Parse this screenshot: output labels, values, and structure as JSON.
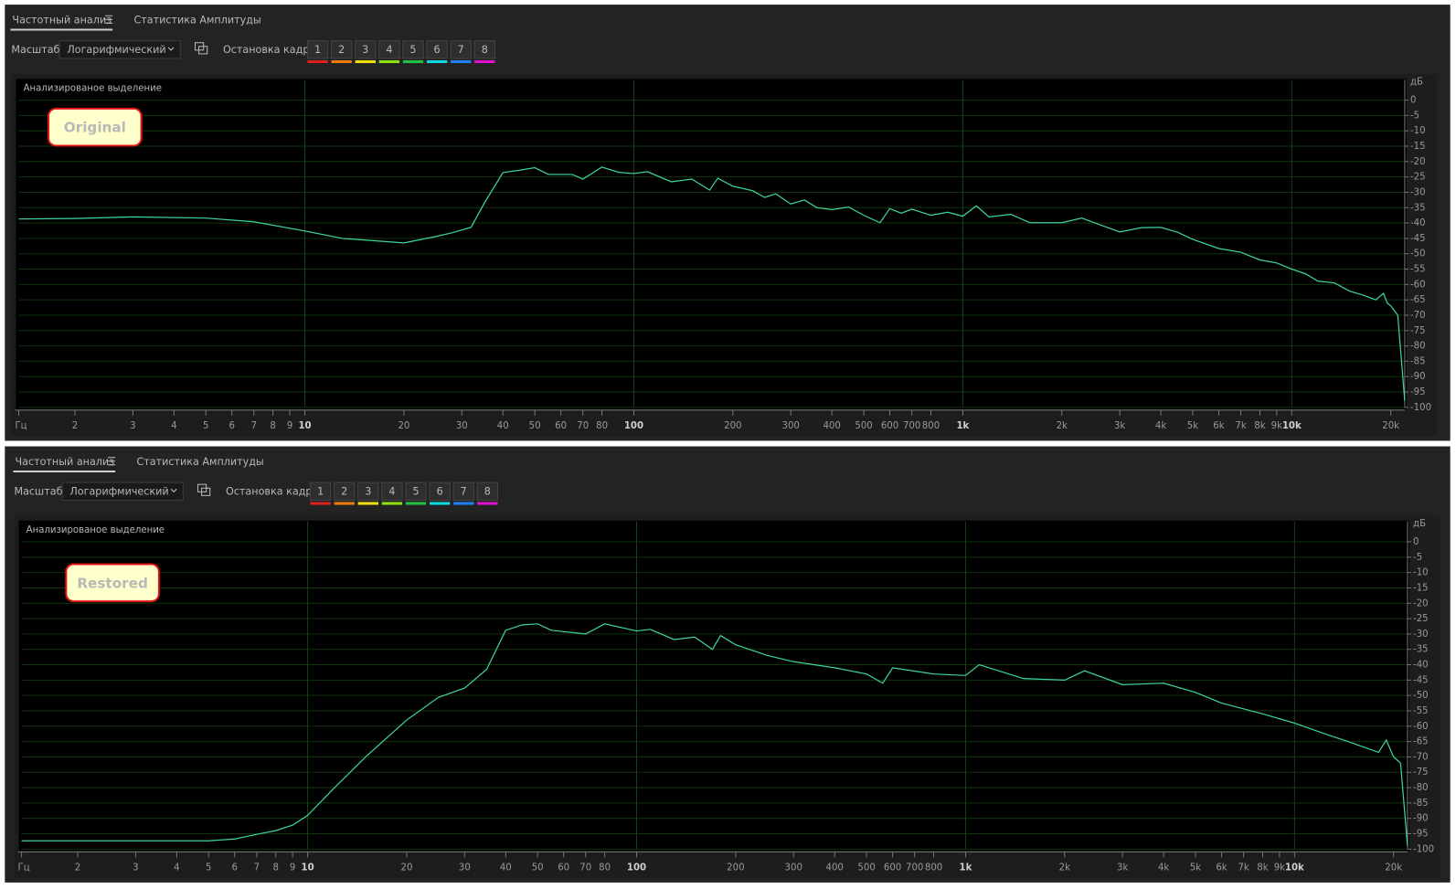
{
  "panels": [
    {
      "tabs": [
        "Частотный анализ",
        "Статистика Амплитуды"
      ],
      "scale_label": "Масштаб:",
      "scale_value": "Логарифмический",
      "freeze_label": "Остановка кадра:",
      "freeze_buttons": [
        {
          "label": "1",
          "color": "#e01e1e"
        },
        {
          "label": "2",
          "color": "#f07c10"
        },
        {
          "label": "3",
          "color": "#f0e010"
        },
        {
          "label": "4",
          "color": "#8fe010"
        },
        {
          "label": "5",
          "color": "#20c040"
        },
        {
          "label": "6",
          "color": "#10d8e0"
        },
        {
          "label": "7",
          "color": "#2080f0"
        },
        {
          "label": "8",
          "color": "#e010d0"
        }
      ]
    },
    {
      "tabs": [
        "Частотный анализ",
        "Статистика Амплитуды"
      ],
      "scale_label": "Масштаб:",
      "scale_value": "Логарифмический",
      "freeze_label": "Остановка кадра:",
      "freeze_buttons": [
        {
          "label": "1",
          "color": "#e01e1e"
        },
        {
          "label": "2",
          "color": "#f07c10"
        },
        {
          "label": "3",
          "color": "#f0e010"
        },
        {
          "label": "4",
          "color": "#8fe010"
        },
        {
          "label": "5",
          "color": "#20c040"
        },
        {
          "label": "6",
          "color": "#10d8e0"
        },
        {
          "label": "7",
          "color": "#2080f0"
        },
        {
          "label": "8",
          "color": "#e010d0"
        }
      ]
    }
  ],
  "chart_data": [
    {
      "type": "line",
      "overlay_label": "Анализированое выделение",
      "annotation": "Original",
      "x_unit": "Гц",
      "y_unit": "дБ",
      "log_x": true,
      "grid": true,
      "color": "#3fd69b",
      "x": [
        1.35,
        2,
        3,
        5,
        7,
        10,
        13,
        20,
        25,
        28,
        32,
        35,
        40,
        45,
        50,
        55,
        65,
        70,
        80,
        90,
        100,
        110,
        130,
        150,
        170,
        180,
        200,
        230,
        250,
        270,
        300,
        330,
        360,
        400,
        450,
        500,
        560,
        600,
        650,
        700,
        800,
        900,
        1000,
        1100,
        1200,
        1400,
        1600,
        2000,
        2300,
        2600,
        3000,
        3500,
        4000,
        4500,
        5000,
        6000,
        7000,
        8000,
        9000,
        10000,
        11000,
        12000,
        13500,
        15000,
        16500,
        18000,
        19000,
        19500,
        20000,
        21000,
        22050
      ],
      "values": [
        -38.7,
        -38.5,
        -38,
        -38.4,
        -39.6,
        -42.6,
        -45,
        -46.5,
        -44.4,
        -43.2,
        -41.4,
        -33.8,
        -23.6,
        -22.8,
        -22,
        -24.2,
        -24.2,
        -25.7,
        -21.8,
        -23.5,
        -23.9,
        -23.3,
        -26.6,
        -25.7,
        -29.3,
        -25.4,
        -28,
        -29.5,
        -31.7,
        -30.5,
        -33.8,
        -32.5,
        -35,
        -35.6,
        -34.8,
        -37.5,
        -39.9,
        -35.3,
        -36.8,
        -35.5,
        -37.5,
        -36.5,
        -37.8,
        -34.4,
        -38,
        -37.2,
        -39.9,
        -39.9,
        -38.4,
        -40.5,
        -42.9,
        -41.5,
        -41.4,
        -43,
        -45.3,
        -48.3,
        -49.5,
        -52,
        -53,
        -55,
        -56.5,
        -58.9,
        -59.5,
        -62.2,
        -63.5,
        -65,
        -62.9,
        -66,
        -67,
        -70,
        -97.9
      ],
      "xlim": [
        1.35,
        22050
      ],
      "ylim": [
        -100,
        6
      ],
      "xticks": [
        2,
        3,
        4,
        5,
        6,
        7,
        8,
        9,
        10,
        20,
        30,
        40,
        50,
        60,
        70,
        80,
        100,
        200,
        300,
        400,
        500,
        600,
        700,
        800,
        {
          "value": 1000,
          "label": "1k"
        },
        {
          "value": 2000,
          "label": "2k"
        },
        {
          "value": 3000,
          "label": "3k"
        },
        {
          "value": 4000,
          "label": "4k"
        },
        {
          "value": 5000,
          "label": "5k"
        },
        {
          "value": 6000,
          "label": "6k"
        },
        {
          "value": 7000,
          "label": "7k"
        },
        {
          "value": 8000,
          "label": "8k"
        },
        {
          "value": 9000,
          "label": "9k"
        },
        {
          "value": 10000,
          "label": "10k"
        },
        {
          "value": 20000,
          "label": "20k"
        }
      ],
      "yticks": [
        0,
        -5,
        -10,
        -15,
        -20,
        -25,
        -30,
        -35,
        -40,
        -45,
        -50,
        -55,
        -60,
        -65,
        -70,
        -75,
        -80,
        -85,
        -90,
        -95,
        -100
      ]
    },
    {
      "type": "line",
      "overlay_label": "Анализированое выделение",
      "annotation": "Restored",
      "x_unit": "Гц",
      "y_unit": "дБ",
      "log_x": true,
      "grid": true,
      "color": "#3fd69b",
      "x": [
        1.35,
        3,
        5,
        6,
        7,
        8,
        9,
        10,
        12,
        15,
        20,
        25,
        30,
        35,
        40,
        45,
        50,
        55,
        70,
        80,
        100,
        110,
        130,
        150,
        170,
        180,
        200,
        250,
        300,
        400,
        500,
        560,
        600,
        800,
        1000,
        1100,
        1500,
        2000,
        2300,
        3000,
        4000,
        5000,
        6000,
        8000,
        10000,
        12000,
        15000,
        18000,
        19000,
        20000,
        21000,
        22050
      ],
      "values": [
        -97.3,
        -97.3,
        -97.3,
        -96.7,
        -95.2,
        -94,
        -92.2,
        -89,
        -80.3,
        -70,
        -58,
        -50.6,
        -47.6,
        -41.5,
        -28.8,
        -27,
        -26.7,
        -28.8,
        -30,
        -26.7,
        -29,
        -28.5,
        -31.8,
        -31,
        -35,
        -30.5,
        -33.5,
        -37,
        -39,
        -41,
        -43,
        -46,
        -41,
        -43,
        -43.5,
        -40,
        -44.5,
        -45,
        -42,
        -46.5,
        -46,
        -49,
        -52.5,
        -56,
        -59,
        -62,
        -65.5,
        -68.5,
        -64.5,
        -70,
        -72,
        -99
      ],
      "xlim": [
        1.35,
        22050
      ],
      "ylim": [
        -100,
        6
      ],
      "xticks": [
        2,
        3,
        4,
        5,
        6,
        7,
        8,
        9,
        10,
        20,
        30,
        40,
        50,
        60,
        70,
        80,
        100,
        200,
        300,
        400,
        500,
        600,
        700,
        800,
        {
          "value": 1000,
          "label": "1k"
        },
        {
          "value": 2000,
          "label": "2k"
        },
        {
          "value": 3000,
          "label": "3k"
        },
        {
          "value": 4000,
          "label": "4k"
        },
        {
          "value": 5000,
          "label": "5k"
        },
        {
          "value": 6000,
          "label": "6k"
        },
        {
          "value": 7000,
          "label": "7k"
        },
        {
          "value": 8000,
          "label": "8k"
        },
        {
          "value": 9000,
          "label": "9k"
        },
        {
          "value": 10000,
          "label": "10k"
        },
        {
          "value": 20000,
          "label": "20k"
        }
      ],
      "yticks": [
        0,
        -5,
        -10,
        -15,
        -20,
        -25,
        -30,
        -35,
        -40,
        -45,
        -50,
        -55,
        -60,
        -65,
        -70,
        -75,
        -80,
        -85,
        -90,
        -95,
        -100
      ]
    }
  ]
}
